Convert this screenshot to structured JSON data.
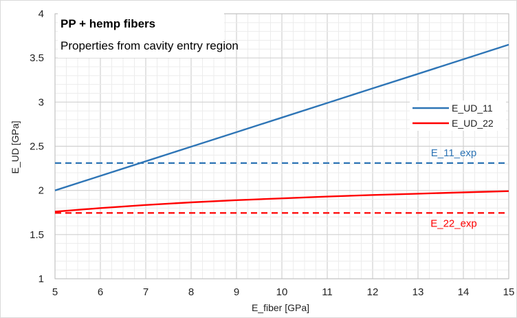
{
  "chart_data": {
    "type": "line",
    "title": "PP + hemp fibers",
    "subtitle": "Properties from cavity entry region",
    "xlabel": "E_fiber [GPa]",
    "ylabel": "E_UD [GPa]",
    "xlim": [
      5,
      15
    ],
    "ylim": [
      1,
      4
    ],
    "x_ticks": [
      "5",
      "6",
      "7",
      "8",
      "9",
      "10",
      "11",
      "12",
      "13",
      "14",
      "15"
    ],
    "y_ticks": [
      "1",
      "1.5",
      "2",
      "2.5",
      "3",
      "3.5",
      "4"
    ],
    "grid": true,
    "legend_position": "right",
    "series": [
      {
        "name": "E_UD_11",
        "color": "#2e75b6",
        "style": "solid",
        "x": [
          5,
          6,
          7,
          8,
          9,
          10,
          11,
          12,
          13,
          14,
          15
        ],
        "y": [
          2.0,
          2.165,
          2.33,
          2.495,
          2.66,
          2.825,
          2.99,
          3.155,
          3.32,
          3.485,
          3.65
        ]
      },
      {
        "name": "E_UD_22",
        "color": "#ff0000",
        "style": "solid",
        "x": [
          5,
          6,
          7,
          8,
          9,
          10,
          11,
          12,
          13,
          14,
          15
        ],
        "y": [
          1.76,
          1.8,
          1.835,
          1.865,
          1.89,
          1.91,
          1.93,
          1.948,
          1.963,
          1.978,
          1.992
        ]
      }
    ],
    "reference_lines": [
      {
        "label": "E_11_exp",
        "y": 2.31,
        "color": "#2e75b6",
        "style": "dashed"
      },
      {
        "label": "E_22_exp",
        "y": 1.745,
        "color": "#ff0000",
        "style": "dashed"
      }
    ]
  }
}
